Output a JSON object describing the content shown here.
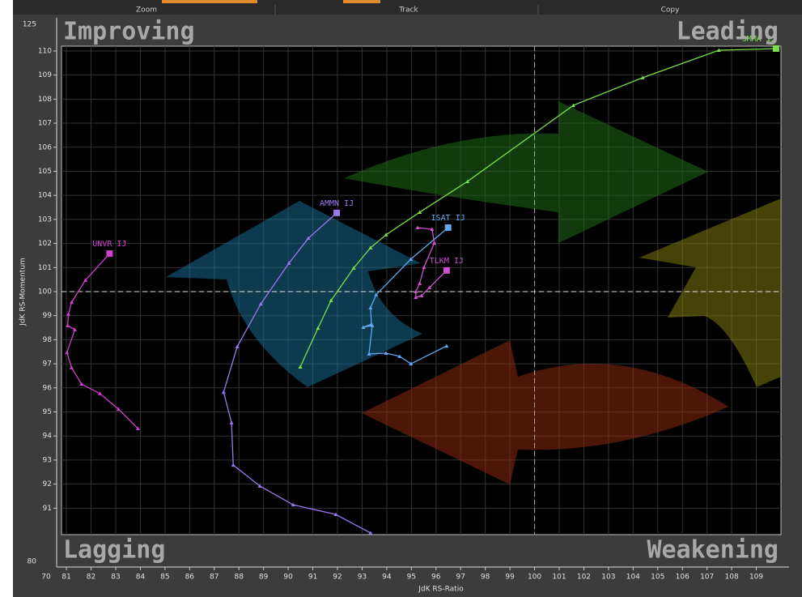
{
  "toolbar": [
    "Zoom",
    "Track",
    "Copy"
  ],
  "chart_data": {
    "type": "line",
    "quadrants": {
      "top_left": "Improving",
      "top_right": "Leading",
      "bottom_left": "Lagging",
      "bottom_right": "Weakening"
    },
    "x_label": "JdK RS-Ratio",
    "y_label": "JdK RS-Momentum",
    "xlim": [
      80.8,
      110
    ],
    "ylim": [
      89.9,
      110.2
    ],
    "xticks": [
      81,
      82,
      83,
      84,
      85,
      86,
      87,
      88,
      89,
      90,
      91,
      92,
      93,
      94,
      95,
      96,
      97,
      98,
      99,
      100,
      101,
      102,
      103,
      104,
      105,
      106,
      107,
      108,
      109
    ],
    "yticks": [
      91,
      92,
      93,
      94,
      95,
      96,
      97,
      98,
      99,
      100,
      101,
      102,
      103,
      104,
      105,
      106,
      107,
      108,
      109,
      110
    ],
    "x_break_tick": 70,
    "y_break_ticks": [
      125,
      80
    ],
    "center": [
      100,
      100
    ],
    "grid": true,
    "series": [
      {
        "name": "UNVR IJ",
        "color": "#d040d0",
        "x": [
          83.9,
          83.11,
          82.36,
          81.61,
          81.21,
          81.02,
          81.34,
          81.05,
          81.08,
          81.21,
          81.77,
          82.75
        ],
        "values": [
          94.31,
          95.12,
          95.76,
          96.16,
          96.84,
          97.47,
          98.42,
          98.59,
          99.06,
          99.56,
          100.47,
          101.58
        ]
      },
      {
        "name": "AMMN IJ",
        "color": "#9a78f0",
        "x": [
          93.34,
          91.93,
          90.2,
          88.85,
          87.77,
          87.7,
          87.38,
          87.93,
          88.89,
          90.03,
          90.82,
          91.97
        ],
        "values": [
          89.97,
          90.74,
          91.14,
          91.92,
          92.79,
          94.55,
          95.82,
          97.71,
          99.49,
          101.18,
          102.22,
          103.27
        ]
      },
      {
        "name": "SMMA IJ",
        "color": "#78e048",
        "x": [
          90.49,
          91.21,
          91.74,
          92.66,
          93.34,
          93.97,
          95.34,
          97.28,
          101.57,
          104.39,
          107.48,
          109.8
        ],
        "values": [
          96.87,
          98.48,
          99.63,
          100.98,
          101.82,
          102.36,
          103.3,
          104.58,
          107.74,
          108.89,
          110.03,
          110.1
        ]
      },
      {
        "name": "ISAT IJ",
        "color": "#60a8f0",
        "x": [
          96.43,
          94.98,
          94.52,
          93.97,
          93.28,
          93.41,
          93.05,
          93.38,
          93.34,
          93.57,
          94.98,
          96.49
        ],
        "values": [
          97.74,
          97.0,
          97.31,
          97.44,
          97.41,
          98.59,
          98.52,
          98.65,
          99.33,
          99.87,
          101.35,
          102.66
        ]
      },
      {
        "name": "TLKM IJ",
        "color": "#d050d0",
        "x": [
          95.25,
          95.84,
          95.93,
          95.51,
          95.34,
          95.18,
          95.18,
          95.41,
          95.74,
          96.43
        ],
        "values": [
          102.66,
          102.59,
          102.02,
          101.01,
          100.34,
          100.0,
          99.76,
          99.83,
          100.17,
          100.88
        ]
      }
    ]
  }
}
